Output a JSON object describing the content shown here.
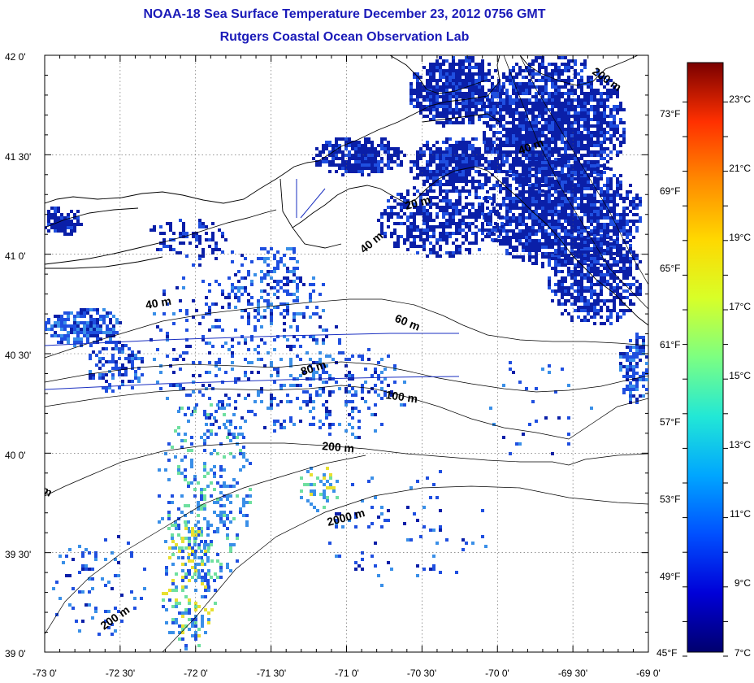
{
  "title": "NOAA-18 Sea Surface Temperature December 23, 2012 0756 GMT",
  "subtitle": "Rutgers Coastal Ocean Observation Lab",
  "axes": {
    "lon_ticks": [
      "-73 0'",
      "-72 30'",
      "-72 0'",
      "-71 30'",
      "-71 0'",
      "-70 30'",
      "-70 0'",
      "-69 30'",
      "-69 0'"
    ],
    "lat_ticks": [
      "42 0'",
      "41 30'",
      "41 0'",
      "40 30'",
      "40 0'",
      "39 30'",
      "39 0'"
    ]
  },
  "colorbar": {
    "celsius": [
      "23°C",
      "21°C",
      "19°C",
      "17°C",
      "15°C",
      "13°C",
      "11°C",
      "9°C",
      "7°C"
    ],
    "fahrenheit": [
      "73°F",
      "69°F",
      "65°F",
      "61°F",
      "57°F",
      "53°F",
      "49°F",
      "45°F"
    ],
    "colors": [
      "#7a0000",
      "#c80000",
      "#ff3000",
      "#ff8a00",
      "#ffd800",
      "#d8ff28",
      "#7cff82",
      "#22e8d6",
      "#00a6ff",
      "#0050ff",
      "#0000d8",
      "#00006e"
    ]
  },
  "isobaths": [
    "200 m",
    "40 m",
    "20 m",
    "40 m",
    "40 m",
    "60 m",
    "80 m",
    "100 m",
    "200 m",
    "2000 m",
    "200 m",
    "m"
  ],
  "sst_colors": {
    "dark": "#0a1fa8",
    "mid": "#1f4fe0",
    "light": "#3a8fe8",
    "warm": "#6fe0a0",
    "hot": "#e8e030"
  }
}
